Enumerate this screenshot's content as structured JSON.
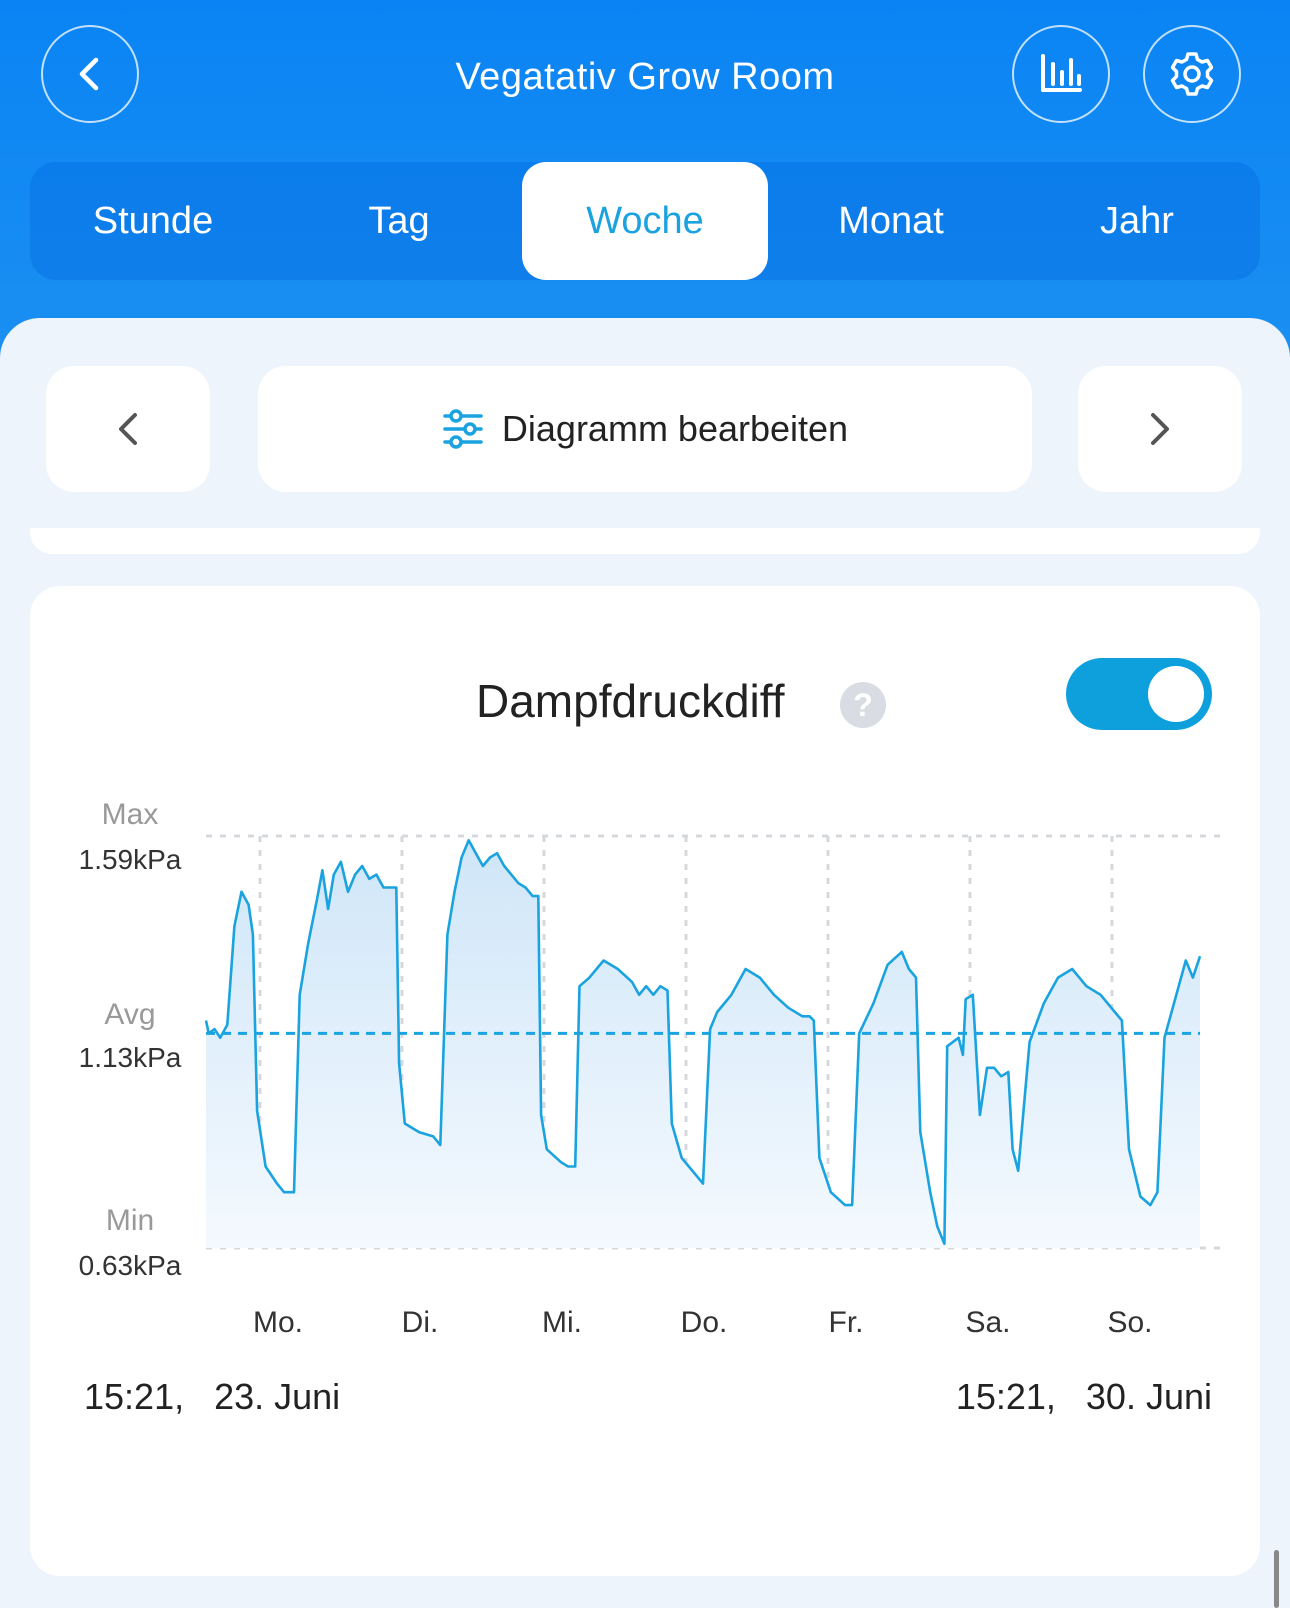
{
  "header": {
    "title": "Vegatativ Grow Room",
    "icons": [
      "chevron-left-icon",
      "bar-chart-icon",
      "gear-icon"
    ]
  },
  "tabs": [
    {
      "label": "Stunde",
      "active": false
    },
    {
      "label": "Tag",
      "active": false
    },
    {
      "label": "Woche",
      "active": true
    },
    {
      "label": "Monat",
      "active": false
    },
    {
      "label": "Jahr",
      "active": false
    }
  ],
  "toolbar": {
    "edit_label": "Diagramm bearbeiten"
  },
  "card": {
    "title": "Dampfdruckdiff",
    "help_label": "?",
    "toggle_on": true,
    "range_start": "15:21,   23. Juni",
    "range_end": "15:21,   30. Juni"
  },
  "colors": {
    "header_blue": "#0a84f4",
    "accent": "#1aa3df",
    "line": "#1aa3df",
    "fill_top": "#cfe6f8",
    "fill_bottom": "#f4f9fe"
  },
  "chart_data": {
    "type": "area",
    "y_labels": [
      {
        "key": "Max",
        "value": "1.59kPa"
      },
      {
        "key": "Avg",
        "value": "1.13kPa"
      },
      {
        "key": "Min",
        "value": "0.63kPa"
      }
    ],
    "ylim": [
      0.63,
      1.59
    ],
    "avg": 1.13,
    "x_labels": [
      "Mo.",
      "Di.",
      "Mi.",
      "Do.",
      "Fr.",
      "Sa.",
      "So."
    ],
    "x_domain_days": [
      0,
      7
    ],
    "points": [
      [
        0.0,
        1.16
      ],
      [
        0.02,
        1.13
      ],
      [
        0.06,
        1.14
      ],
      [
        0.1,
        1.12
      ],
      [
        0.15,
        1.15
      ],
      [
        0.2,
        1.38
      ],
      [
        0.25,
        1.46
      ],
      [
        0.3,
        1.43
      ],
      [
        0.33,
        1.36
      ],
      [
        0.36,
        0.95
      ],
      [
        0.42,
        0.82
      ],
      [
        0.5,
        0.78
      ],
      [
        0.55,
        0.76
      ],
      [
        0.6,
        0.76
      ],
      [
        0.62,
        0.76
      ],
      [
        0.66,
        1.22
      ],
      [
        0.72,
        1.34
      ],
      [
        0.78,
        1.44
      ],
      [
        0.82,
        1.51
      ],
      [
        0.86,
        1.42
      ],
      [
        0.9,
        1.5
      ],
      [
        0.95,
        1.53
      ],
      [
        1.0,
        1.46
      ],
      [
        1.05,
        1.5
      ],
      [
        1.1,
        1.52
      ],
      [
        1.15,
        1.49
      ],
      [
        1.2,
        1.5
      ],
      [
        1.25,
        1.47
      ],
      [
        1.3,
        1.47
      ],
      [
        1.34,
        1.47
      ],
      [
        1.36,
        1.06
      ],
      [
        1.4,
        0.92
      ],
      [
        1.5,
        0.9
      ],
      [
        1.6,
        0.89
      ],
      [
        1.65,
        0.87
      ],
      [
        1.7,
        1.36
      ],
      [
        1.75,
        1.46
      ],
      [
        1.8,
        1.54
      ],
      [
        1.85,
        1.58
      ],
      [
        1.9,
        1.55
      ],
      [
        1.95,
        1.52
      ],
      [
        2.0,
        1.54
      ],
      [
        2.05,
        1.55
      ],
      [
        2.1,
        1.52
      ],
      [
        2.15,
        1.5
      ],
      [
        2.2,
        1.48
      ],
      [
        2.25,
        1.47
      ],
      [
        2.3,
        1.45
      ],
      [
        2.34,
        1.45
      ],
      [
        2.36,
        0.94
      ],
      [
        2.4,
        0.86
      ],
      [
        2.5,
        0.83
      ],
      [
        2.55,
        0.82
      ],
      [
        2.6,
        0.82
      ],
      [
        2.63,
        1.24
      ],
      [
        2.7,
        1.26
      ],
      [
        2.8,
        1.3
      ],
      [
        2.9,
        1.28
      ],
      [
        3.0,
        1.25
      ],
      [
        3.05,
        1.22
      ],
      [
        3.1,
        1.24
      ],
      [
        3.15,
        1.22
      ],
      [
        3.2,
        1.24
      ],
      [
        3.25,
        1.23
      ],
      [
        3.28,
        0.92
      ],
      [
        3.35,
        0.84
      ],
      [
        3.45,
        0.8
      ],
      [
        3.5,
        0.78
      ],
      [
        3.55,
        1.14
      ],
      [
        3.6,
        1.18
      ],
      [
        3.7,
        1.22
      ],
      [
        3.8,
        1.28
      ],
      [
        3.9,
        1.26
      ],
      [
        4.0,
        1.22
      ],
      [
        4.1,
        1.19
      ],
      [
        4.2,
        1.17
      ],
      [
        4.25,
        1.17
      ],
      [
        4.28,
        1.16
      ],
      [
        4.32,
        0.84
      ],
      [
        4.4,
        0.76
      ],
      [
        4.5,
        0.73
      ],
      [
        4.55,
        0.73
      ],
      [
        4.6,
        1.13
      ],
      [
        4.7,
        1.2
      ],
      [
        4.8,
        1.29
      ],
      [
        4.9,
        1.32
      ],
      [
        4.95,
        1.28
      ],
      [
        5.0,
        1.26
      ],
      [
        5.03,
        0.9
      ],
      [
        5.1,
        0.76
      ],
      [
        5.15,
        0.68
      ],
      [
        5.2,
        0.64
      ],
      [
        5.22,
        1.1
      ],
      [
        5.3,
        1.12
      ],
      [
        5.33,
        1.08
      ],
      [
        5.35,
        1.21
      ],
      [
        5.4,
        1.22
      ],
      [
        5.45,
        0.94
      ],
      [
        5.5,
        1.05
      ],
      [
        5.55,
        1.05
      ],
      [
        5.6,
        1.03
      ],
      [
        5.65,
        1.04
      ],
      [
        5.68,
        0.86
      ],
      [
        5.72,
        0.81
      ],
      [
        5.8,
        1.11
      ],
      [
        5.9,
        1.2
      ],
      [
        6.0,
        1.26
      ],
      [
        6.1,
        1.28
      ],
      [
        6.2,
        1.24
      ],
      [
        6.3,
        1.22
      ],
      [
        6.35,
        1.2
      ],
      [
        6.4,
        1.18
      ],
      [
        6.45,
        1.16
      ],
      [
        6.5,
        0.86
      ],
      [
        6.58,
        0.75
      ],
      [
        6.65,
        0.73
      ],
      [
        6.7,
        0.76
      ],
      [
        6.75,
        1.12
      ],
      [
        6.8,
        1.18
      ],
      [
        6.85,
        1.24
      ],
      [
        6.9,
        1.3
      ],
      [
        6.95,
        1.26
      ],
      [
        7.0,
        1.31
      ]
    ]
  }
}
